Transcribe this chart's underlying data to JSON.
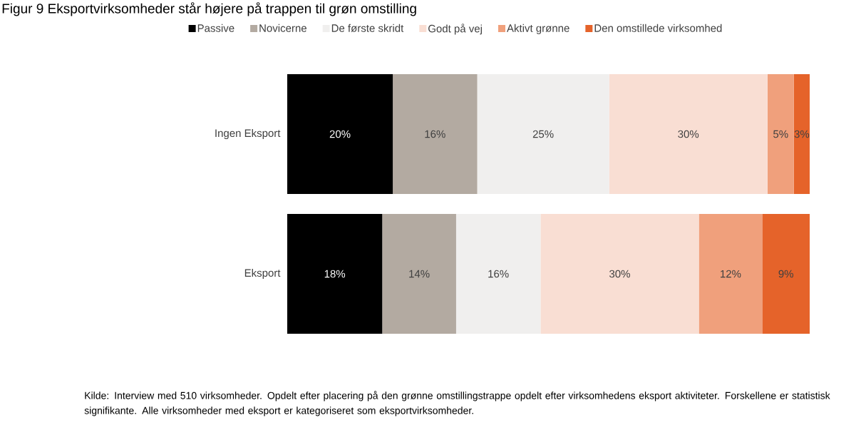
{
  "chart_data": {
    "type": "bar",
    "orientation": "horizontal",
    "stacked": true,
    "title": "Figur 9 Eksportvirksomheder står højere på trappen til grøn omstilling",
    "categories": [
      "Ingen Eksport",
      "Eksport"
    ],
    "legend": "top",
    "series": [
      {
        "name": "Passive",
        "color": "#000000",
        "values": [
          20,
          18
        ],
        "value_labels": [
          "20%",
          "18%"
        ]
      },
      {
        "name": "Novicerne",
        "color": "#b3aaa1",
        "values": [
          16,
          14
        ],
        "value_labels": [
          "16%",
          "14%"
        ]
      },
      {
        "name": "De første skridt",
        "color": "#f0efee",
        "values": [
          25,
          16
        ],
        "value_labels": [
          "25%",
          "16%"
        ]
      },
      {
        "name": "Godt på vej",
        "color": "#f9ded3",
        "values": [
          30,
          30
        ],
        "value_labels": [
          "30%",
          "30%"
        ]
      },
      {
        "name": "Aktivt grønne",
        "color": "#f0a07c",
        "values": [
          5,
          12
        ],
        "value_labels": [
          "5%",
          "12%"
        ]
      },
      {
        "name": "Den omstillede virksomhed",
        "color": "#e5632a",
        "values": [
          3,
          9
        ],
        "value_labels": [
          "3%",
          "9%"
        ]
      }
    ],
    "annotations": [
      "Kilde:  Interview med 510 virksomheder. Opdelt efter placering på den grønne omstillingstrappe opdelt efter virksomhedens eksport aktiviteter. Forskellene er statistisk signifikante.  Alle virksomheder med eksport er kategoriseret som eksportvirksomheder."
    ]
  }
}
